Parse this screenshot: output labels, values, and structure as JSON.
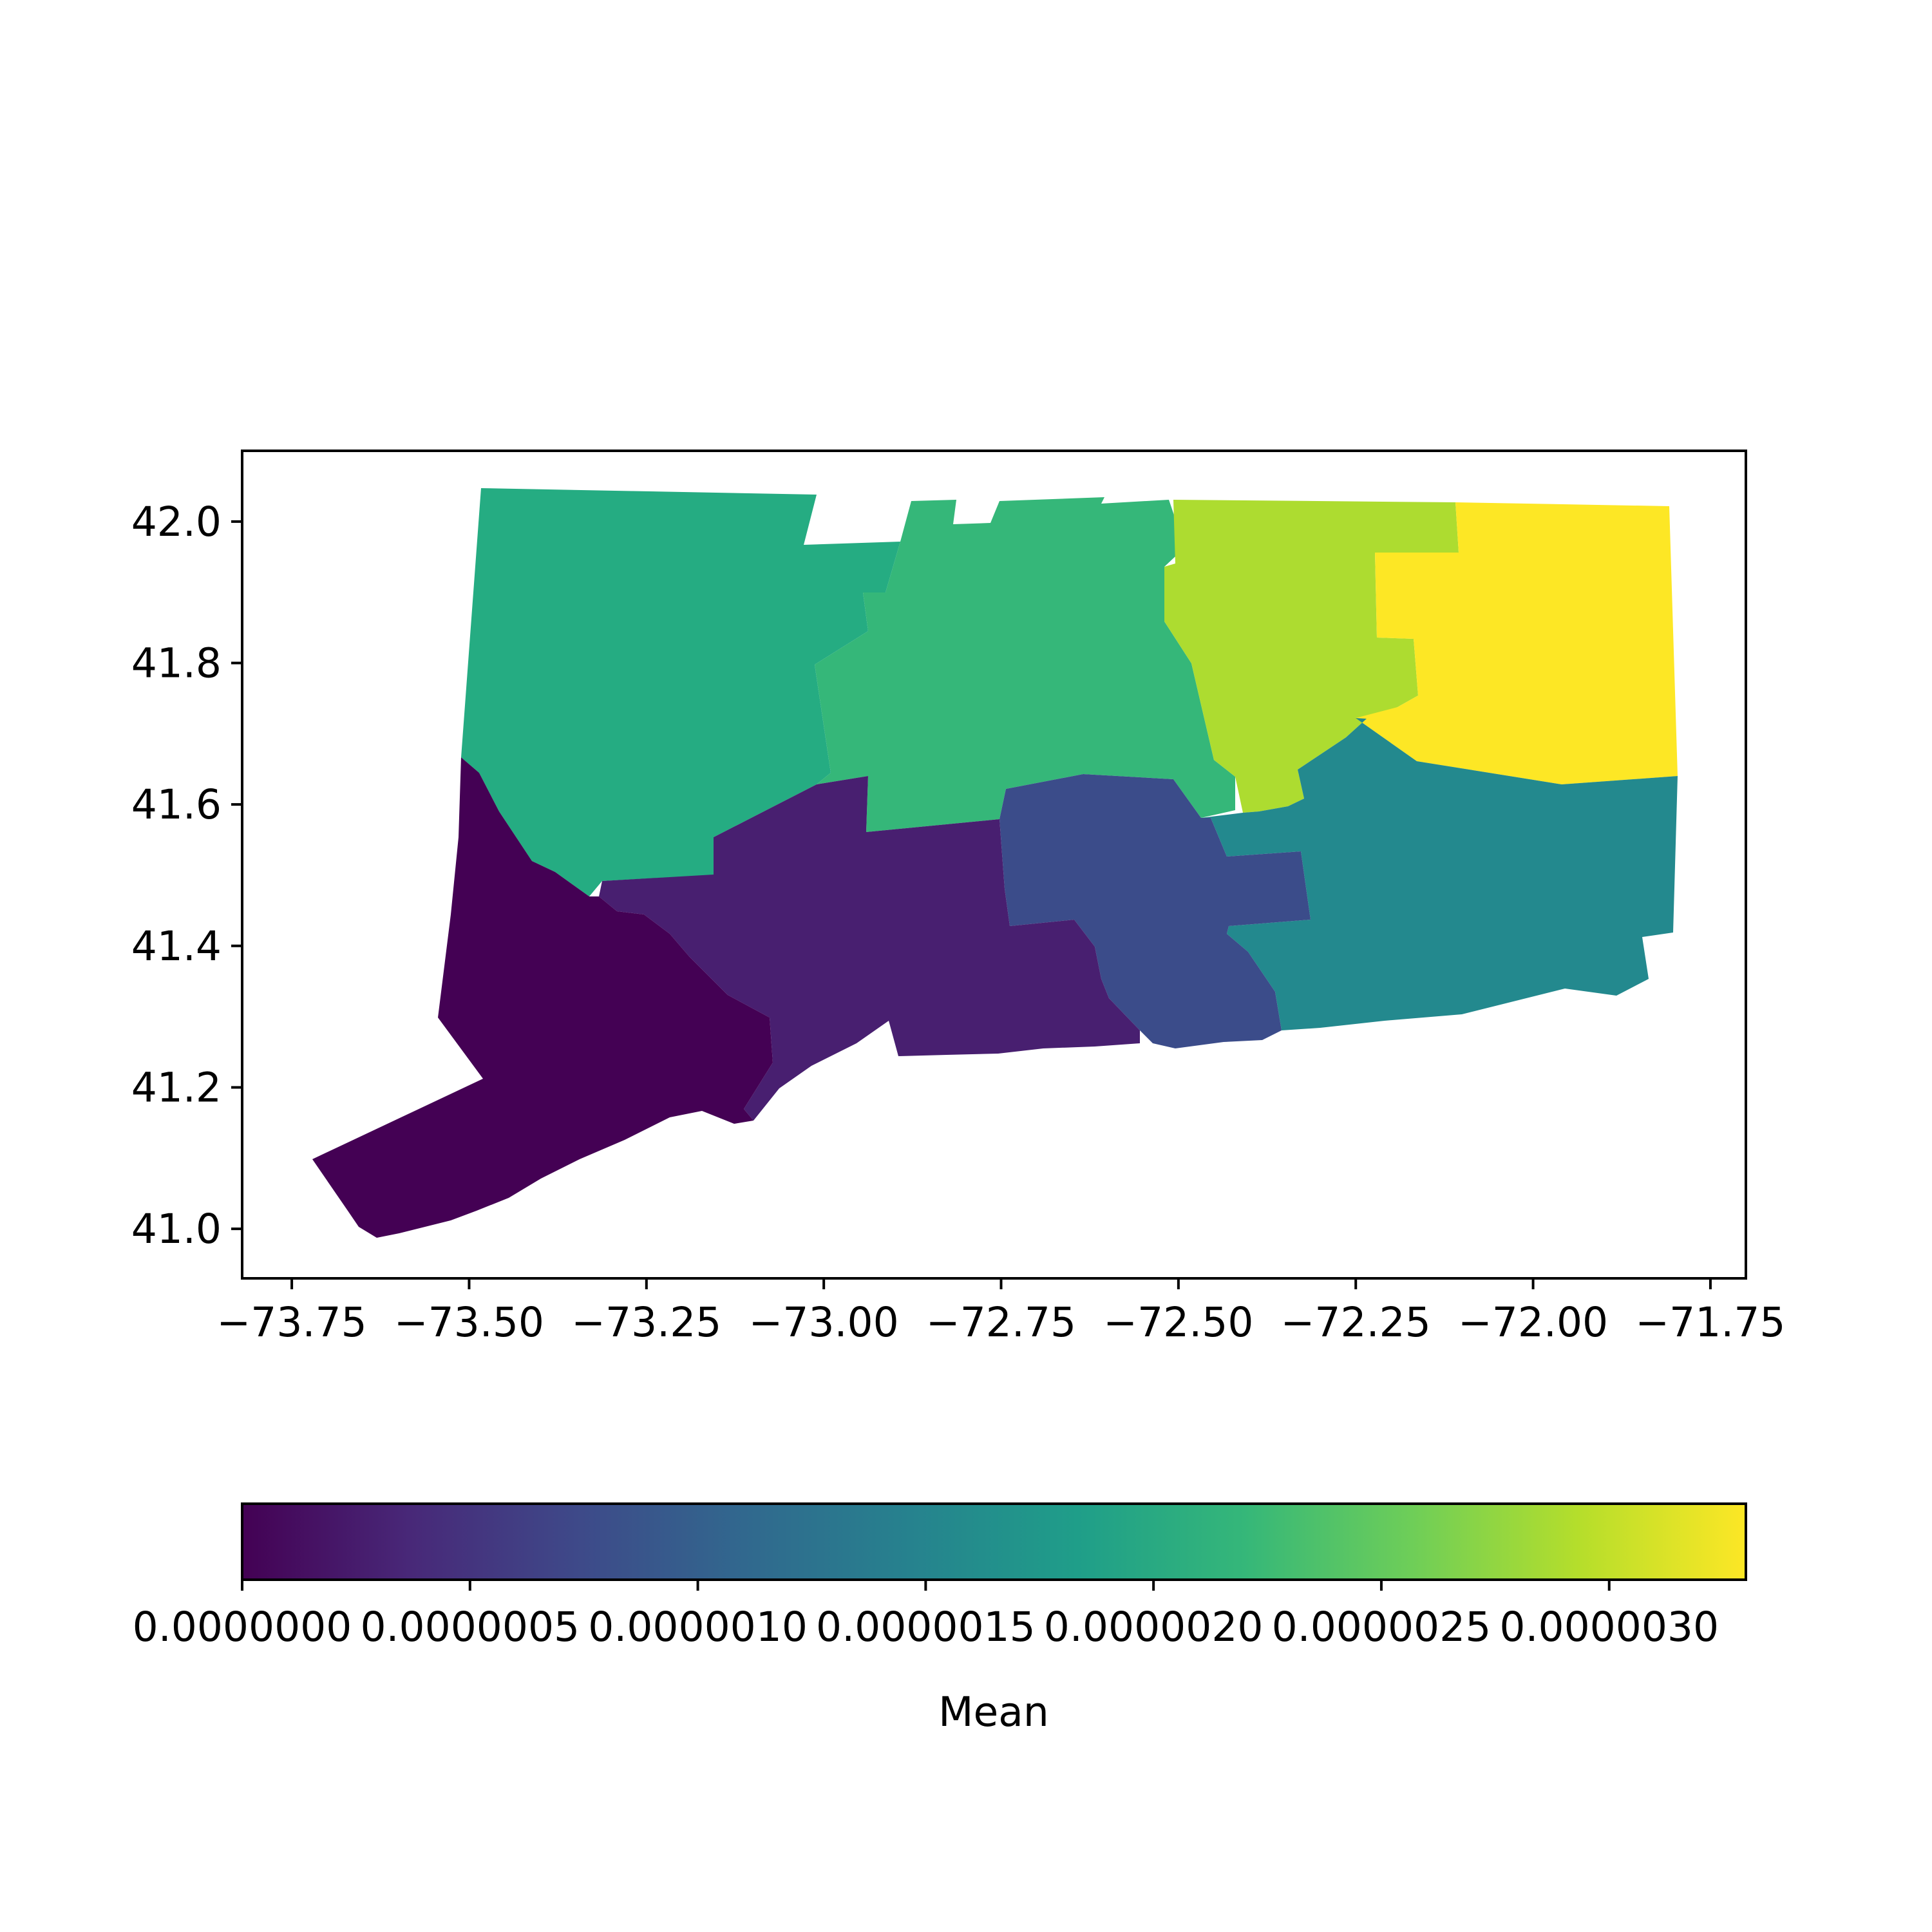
{
  "chart_data": {
    "type": "choropleth",
    "region": "Connecticut counties",
    "colormap": "viridis",
    "xlim": [
      -73.82,
      -71.7
    ],
    "ylim": [
      40.93,
      42.1
    ],
    "x_ticks": [
      -73.75,
      -73.5,
      -73.25,
      -73.0,
      -72.75,
      -72.5,
      -72.25,
      -72.0,
      -71.75
    ],
    "x_tick_labels": [
      "−73.75",
      "−73.50",
      "−73.25",
      "−73.00",
      "−72.75",
      "−72.50",
      "−72.25",
      "−72.00",
      "−71.75"
    ],
    "y_ticks": [
      41.0,
      41.2,
      41.4,
      41.6,
      41.8,
      42.0
    ],
    "y_tick_labels": [
      "41.0",
      "41.2",
      "41.4",
      "41.6",
      "41.8",
      "42.0"
    ],
    "grid": false,
    "regions": [
      {
        "id": "fairfield",
        "value": 0.0,
        "color": "#440154"
      },
      {
        "id": "new-haven",
        "value": 4e-07,
        "color": "#481f70"
      },
      {
        "id": "middlesex",
        "value": 9e-07,
        "color": "#3b4c8a"
      },
      {
        "id": "new-london",
        "value": 1.5e-06,
        "color": "#23898e"
      },
      {
        "id": "litchfield",
        "value": 1.9e-06,
        "color": "#25ac82"
      },
      {
        "id": "hartford",
        "value": 2.1e-06,
        "color": "#35b779"
      },
      {
        "id": "tolland",
        "value": 2.8e-06,
        "color": "#addc30"
      },
      {
        "id": "windham",
        "value": 3.3e-06,
        "color": "#fde725"
      }
    ],
    "colorbar": {
      "label": "Mean",
      "orientation": "horizontal",
      "min": 0.0,
      "max": 3.3e-06,
      "ticks": [
        0.0,
        5e-07,
        1e-06,
        1.5e-06,
        2e-06,
        2.5e-06,
        3e-06
      ],
      "tick_labels": [
        "0.0000000",
        "0.0000005",
        "0.0000010",
        "0.0000015",
        "0.0000020",
        "0.0000025",
        "0.0000030"
      ],
      "stops": [
        "#440154",
        "#482878",
        "#3e4989",
        "#31688e",
        "#26828e",
        "#1f9e89",
        "#35b779",
        "#6ece58",
        "#b5de2b",
        "#fde725"
      ]
    }
  }
}
